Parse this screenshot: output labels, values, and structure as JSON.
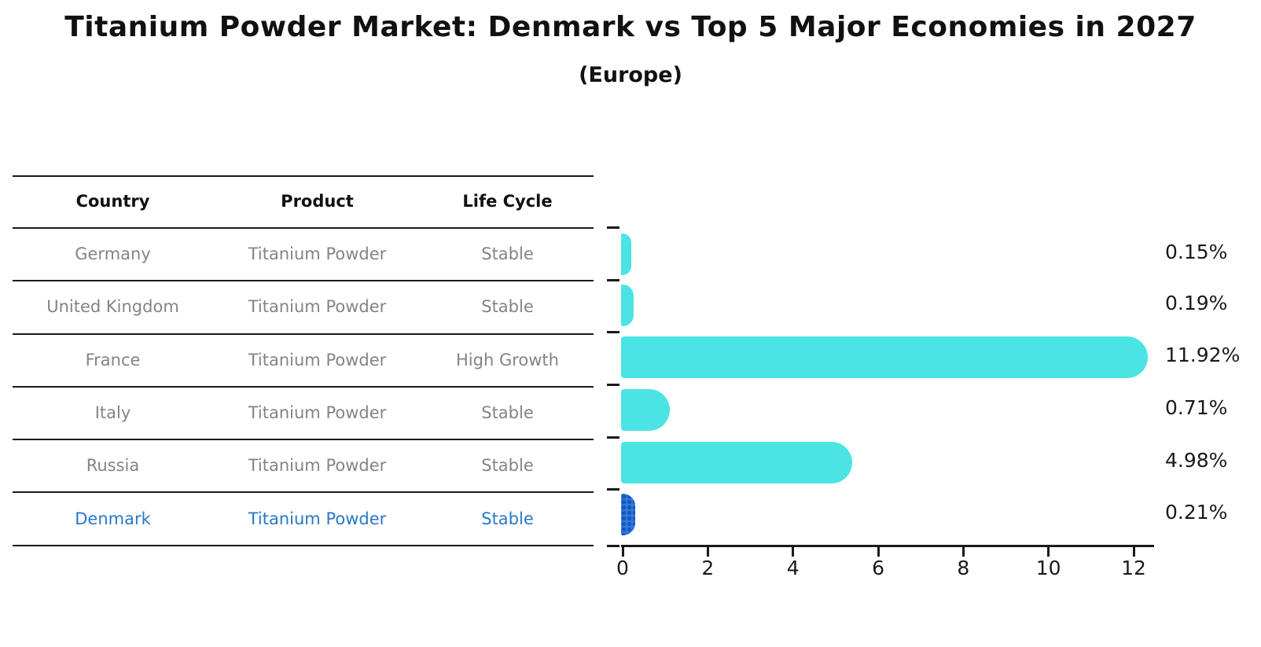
{
  "title": "Titanium Powder Market: Denmark vs Top 5 Major Economies in 2027",
  "subtitle": "(Europe)",
  "table": {
    "headers": {
      "country": "Country",
      "product": "Product",
      "life_cycle": "Life Cycle"
    },
    "rows": [
      {
        "country": "Germany",
        "product": "Titanium Powder",
        "life_cycle": "Stable",
        "highlight": false
      },
      {
        "country": "United Kingdom",
        "product": "Titanium Powder",
        "life_cycle": "Stable",
        "highlight": false
      },
      {
        "country": "France",
        "product": "Titanium Powder",
        "life_cycle": "High Growth",
        "highlight": false
      },
      {
        "country": "Italy",
        "product": "Titanium Powder",
        "life_cycle": "Stable",
        "highlight": false
      },
      {
        "country": "Russia",
        "product": "Titanium Powder",
        "life_cycle": "Stable",
        "highlight": false
      },
      {
        "country": "Denmark",
        "product": "Titanium Powder",
        "life_cycle": "Stable",
        "highlight": true
      }
    ]
  },
  "chart_data": {
    "type": "bar",
    "orientation": "horizontal",
    "categories": [
      "Germany",
      "United Kingdom",
      "France",
      "Italy",
      "Russia",
      "Denmark"
    ],
    "values": [
      0.15,
      0.19,
      11.92,
      0.71,
      4.98,
      0.21
    ],
    "value_labels": [
      "0.15%",
      "0.19%",
      "11.92%",
      "0.71%",
      "4.98%",
      "0.21%"
    ],
    "highlight_index": 5,
    "xlabel": "",
    "ylabel": "",
    "xlim": [
      0,
      12.5
    ],
    "xticks": [
      0,
      2,
      4,
      6,
      8,
      10,
      12
    ],
    "grid": false,
    "legend": "none",
    "bar_color": "#4be4e4",
    "highlight_bar_color": "#2e7ce0",
    "highlight_text_color": "#2878c8",
    "axis_color": "#1a1a1a",
    "label_text_color": "#848484"
  }
}
